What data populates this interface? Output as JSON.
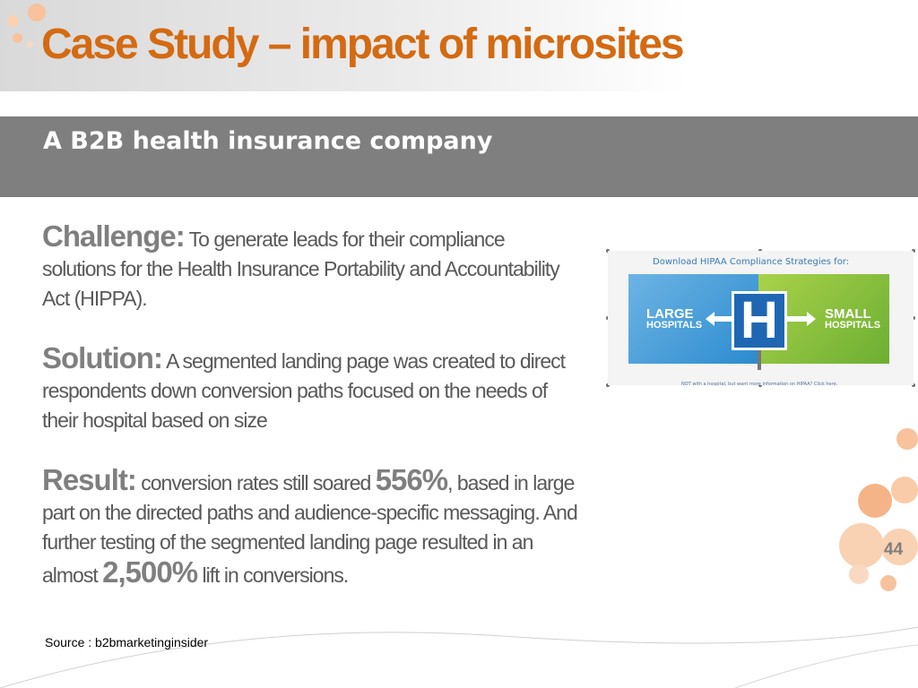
{
  "slide": {
    "title": "Case Study – impact of microsites",
    "subtitle": "A B2B health insurance company",
    "challenge": {
      "label": "Challenge:",
      "text": " To generate leads for their compliance solutions for the Health Insurance Portability and Accountability Act (HIPPA)."
    },
    "solution": {
      "label": "Solution:",
      "text": " A segmented landing page was created to direct respondents down conversion paths focused on the needs of their hospital based on size"
    },
    "result": {
      "label": "Result:",
      "text_before": " conversion rates still soared ",
      "figure1": "556%",
      "text_middle": ", based in large part on the directed paths and audience-specific messaging. And further testing of the segmented landing page resulted in an almost ",
      "figure2": "2,500%",
      "text_after": " lift in conversions."
    },
    "source": "Source : b2bmarketinginsider",
    "page_number": "44"
  },
  "image": {
    "heading": "Download HIPAA Compliance Strategies for:",
    "left_label_line1": "LARGE",
    "left_label_line2": "HOSPITALS",
    "sign_letter": "H",
    "right_label_line1": "SMALL",
    "right_label_line2": "HOSPITALS",
    "footnote": "NOT with a hospital, but want more information on HIPAA? Click here."
  },
  "colors": {
    "title": "#d46a12",
    "subtitle_band": "#7f7f7f",
    "body_text": "#595959",
    "accent_dots": "#f5b488"
  }
}
